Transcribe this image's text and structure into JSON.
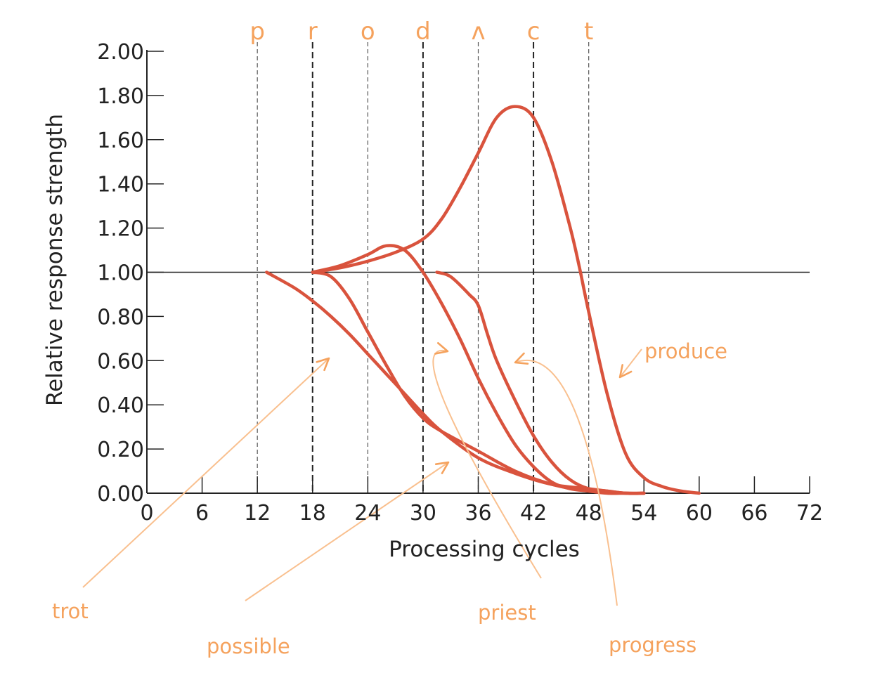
{
  "chart_data": {
    "type": "line",
    "xlabel": "Processing cycles",
    "ylabel": "Relative response strength",
    "xlim": [
      0,
      72
    ],
    "ylim": [
      0,
      2
    ],
    "x_ticks": [
      "0",
      "6",
      "12",
      "18",
      "24",
      "30",
      "36",
      "42",
      "48",
      "54",
      "60",
      "66",
      "72"
    ],
    "y_ticks": [
      "0.00",
      "0.20",
      "0.40",
      "0.60",
      "0.80",
      "1.00",
      "1.20",
      "1.40",
      "1.60",
      "1.80",
      "2.00"
    ],
    "reference_line_y": 1.0,
    "phonemes": [
      {
        "label": "p",
        "x": 12
      },
      {
        "label": "r",
        "x": 18
      },
      {
        "label": "o",
        "x": 24
      },
      {
        "label": "d",
        "x": 30
      },
      {
        "label": "ʌ",
        "x": 36
      },
      {
        "label": "c",
        "x": 42
      },
      {
        "label": "t",
        "x": 48
      }
    ],
    "series": [
      {
        "name": "trot",
        "x": [
          13,
          16,
          18,
          20,
          22,
          24,
          26,
          28,
          30,
          32,
          36,
          40,
          44,
          48,
          52,
          54
        ],
        "y": [
          1.0,
          0.93,
          0.87,
          0.8,
          0.72,
          0.63,
          0.54,
          0.45,
          0.36,
          0.28,
          0.16,
          0.09,
          0.04,
          0.02,
          0.0,
          0.0
        ]
      },
      {
        "name": "possible",
        "x": [
          18,
          20,
          22,
          24,
          26,
          28,
          30,
          32,
          36,
          40,
          44,
          48,
          52,
          54
        ],
        "y": [
          1.0,
          0.98,
          0.88,
          0.73,
          0.58,
          0.44,
          0.34,
          0.28,
          0.19,
          0.1,
          0.04,
          0.01,
          0.0,
          0.0
        ]
      },
      {
        "name": "priest",
        "x": [
          18,
          21,
          24,
          26,
          28,
          30,
          32,
          34,
          36,
          38,
          40,
          42,
          44,
          46,
          48,
          50,
          52,
          54
        ],
        "y": [
          1.0,
          1.03,
          1.08,
          1.12,
          1.1,
          1.0,
          0.86,
          0.7,
          0.52,
          0.36,
          0.22,
          0.12,
          0.05,
          0.02,
          0.01,
          0.0,
          0.0,
          0.0
        ]
      },
      {
        "name": "progress",
        "x": [
          31.5,
          33,
          35,
          36,
          37,
          38,
          40,
          42,
          44,
          46,
          48,
          50,
          52,
          54
        ],
        "y": [
          1.0,
          0.98,
          0.9,
          0.85,
          0.72,
          0.6,
          0.42,
          0.26,
          0.14,
          0.06,
          0.02,
          0.01,
          0.0,
          0.0
        ]
      },
      {
        "name": "produce",
        "x": [
          18,
          21,
          24,
          27,
          30,
          32,
          34,
          36,
          38,
          40,
          42,
          44,
          46,
          47,
          48,
          50,
          52,
          54,
          56,
          58,
          60
        ],
        "y": [
          1.0,
          1.02,
          1.05,
          1.09,
          1.15,
          1.24,
          1.38,
          1.54,
          1.7,
          1.75,
          1.7,
          1.5,
          1.2,
          1.02,
          0.82,
          0.45,
          0.18,
          0.07,
          0.03,
          0.01,
          0.0
        ]
      }
    ]
  }
}
